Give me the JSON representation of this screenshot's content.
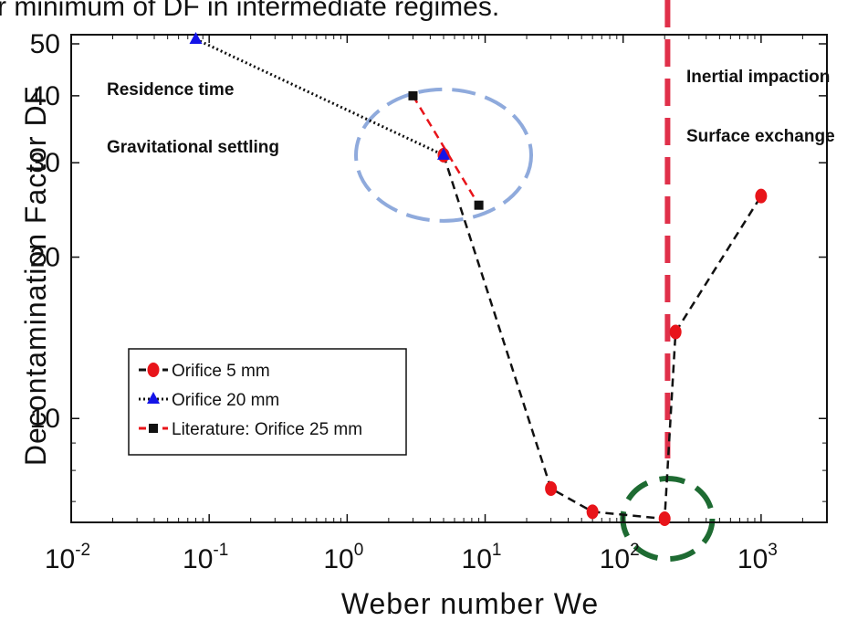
{
  "top_caption": "r minimum of DF in intermediate regimes.",
  "chart_data": {
    "type": "line",
    "xlabel": "Weber number We",
    "ylabel": "Decontamination Factor DF",
    "x_scale": "log",
    "y_scale": "log",
    "xlim": [
      0.01,
      3000
    ],
    "ylim": [
      6.4,
      52
    ],
    "x_ticks": [
      {
        "value": 0.01,
        "base": "10",
        "exp": "-2"
      },
      {
        "value": 0.1,
        "base": "10",
        "exp": "-1"
      },
      {
        "value": 1,
        "base": "10",
        "exp": "0"
      },
      {
        "value": 10,
        "base": "10",
        "exp": "1"
      },
      {
        "value": 100,
        "base": "10",
        "exp": "2"
      },
      {
        "value": 1000,
        "base": "10",
        "exp": "3"
      }
    ],
    "y_ticks": [
      {
        "value": 10,
        "label": "10"
      },
      {
        "value": 20,
        "label": "20"
      },
      {
        "value": 30,
        "label": "30"
      },
      {
        "value": 40,
        "label": "40"
      },
      {
        "value": 50,
        "label": "50"
      }
    ],
    "series": [
      {
        "name": "Orifice 5 mm",
        "color": "#e8141a",
        "marker": "circle",
        "line_style": "dashed",
        "line_color": "#111111",
        "x": [
          5,
          30,
          60,
          200,
          240,
          1000
        ],
        "y": [
          31,
          7.4,
          6.7,
          6.5,
          14.5,
          26
        ]
      },
      {
        "name": "Orifice 20 mm",
        "color": "#1414e8",
        "marker": "triangle",
        "line_style": "dotted",
        "line_color": "#111111",
        "x": [
          0.08,
          5
        ],
        "y": [
          51,
          31
        ]
      },
      {
        "name": "Literature: Orifice 25 mm",
        "color": "#111111",
        "marker": "square",
        "line_style": "dashed",
        "line_color": "#e8141a",
        "x": [
          3,
          9
        ],
        "y": [
          40,
          25
        ]
      }
    ],
    "annotations": {
      "left": [
        "Residence time",
        "Gravitational settling"
      ],
      "right": [
        "Inertial impaction",
        "Surface exchange"
      ]
    },
    "regime_boundary_x": 210,
    "legend_position": "lower-left",
    "highlight_circles": [
      {
        "center_x": 5,
        "center_y": 31,
        "color": "#8faadc"
      },
      {
        "center_x": 210,
        "center_y": 6.5,
        "color": "#1e6b32"
      }
    ],
    "boundary_color": "#e0304a",
    "grid": false
  }
}
